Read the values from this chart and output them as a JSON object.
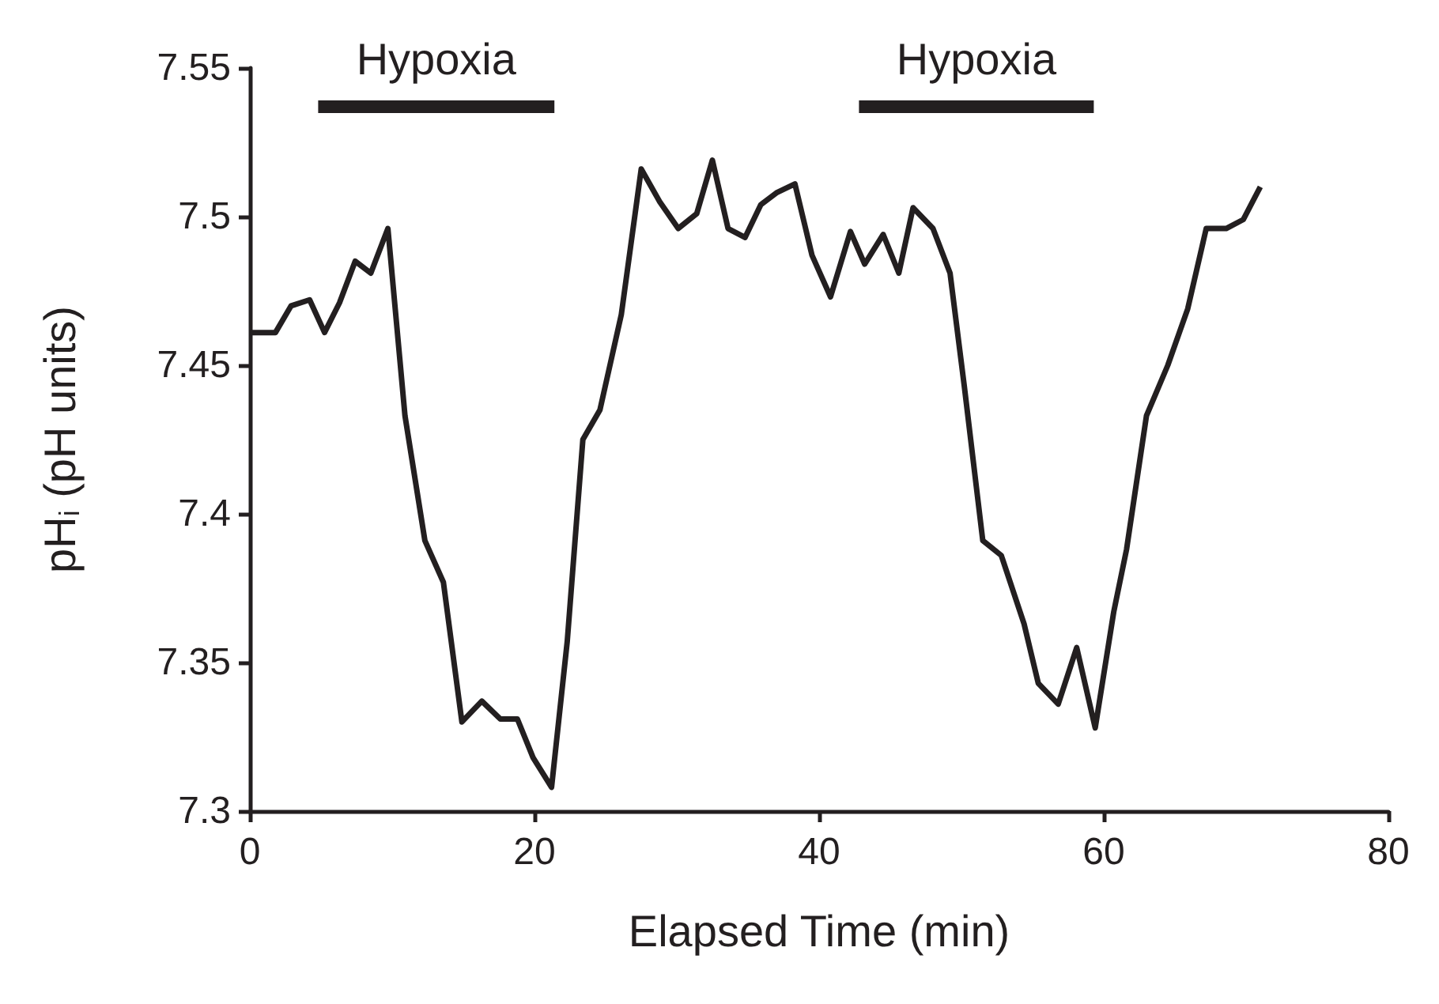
{
  "chart_data": {
    "type": "line",
    "xlabel": "Elapsed Time (min)",
    "ylabel": "pH$_{i}$ (pH units)",
    "series": [
      {
        "color": "#231f20",
        "x": [
          0,
          1.8,
          2.9,
          4.2,
          5.25,
          6.3,
          7.4,
          8.5,
          9.7,
          10.9,
          12.3,
          13.6,
          14.9,
          16.3,
          17.6,
          18.8,
          19.9,
          21.2,
          22.3,
          23.4,
          24.6,
          26.1,
          27.5,
          28.8,
          30.1,
          31.4,
          32.5,
          33.6,
          34.8,
          35.9,
          37.0,
          38.3,
          39.5,
          40.8,
          42.2,
          43.2,
          44.5,
          45.6,
          46.6,
          48.0,
          49.2,
          50.2,
          51.5,
          52.8,
          54.4,
          55.4,
          56.8,
          58.1,
          59.4,
          60.7,
          61.6,
          63.0,
          64.5,
          65.9,
          67.2,
          68.6,
          69.8,
          71.0
        ],
        "values": [
          7.461,
          7.461,
          7.47,
          7.472,
          7.461,
          7.471,
          7.485,
          7.481,
          7.496,
          7.433,
          7.391,
          7.377,
          7.33,
          7.337,
          7.331,
          7.331,
          7.318,
          7.308,
          7.357,
          7.425,
          7.435,
          7.467,
          7.516,
          7.505,
          7.496,
          7.501,
          7.519,
          7.496,
          7.493,
          7.504,
          7.508,
          7.511,
          7.487,
          7.473,
          7.495,
          7.484,
          7.494,
          7.481,
          7.503,
          7.496,
          7.481,
          7.443,
          7.391,
          7.386,
          7.363,
          7.343,
          7.336,
          7.355,
          7.328,
          7.367,
          7.388,
          7.433,
          7.45,
          7.469,
          7.496,
          7.496,
          7.499,
          7.51
        ]
      },
      {
        "name": "Hypoxia",
        "color": "#231f20",
        "x": [
          4.8,
          21.4
        ],
        "values": [
          7.537,
          7.537
        ]
      },
      {
        "name": "Hypoxia",
        "color": "#231f20",
        "x": [
          42.8,
          59.3
        ],
        "values": [
          7.537,
          7.537
        ]
      }
    ],
    "xlim": [
      0,
      80
    ],
    "xticks": [
      0,
      20,
      40,
      60,
      80
    ],
    "ylim": [
      7.3,
      7.55
    ],
    "yticks": [
      7.3,
      7.35,
      7.4,
      7.45,
      7.5,
      7.55
    ],
    "grid": false,
    "legend": false,
    "marker": "none",
    "line_style": "solid"
  }
}
